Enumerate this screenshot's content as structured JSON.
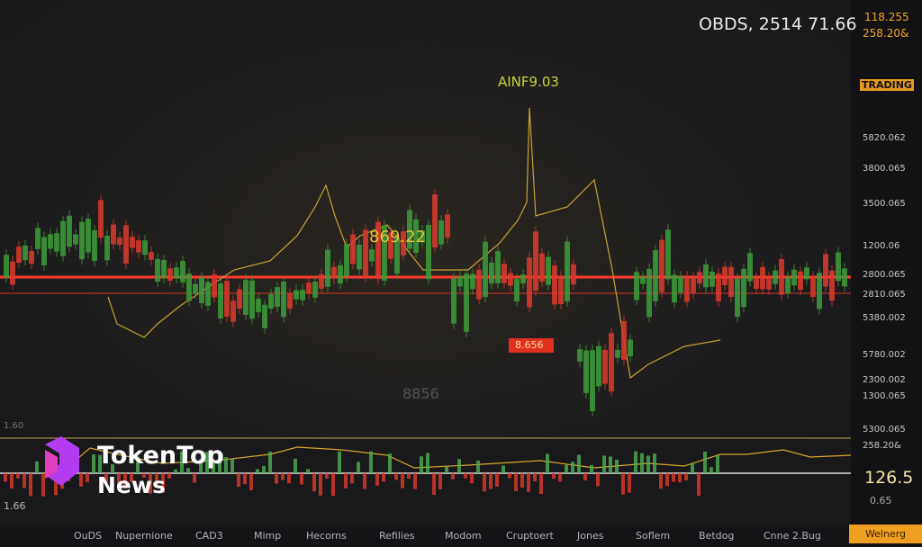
{
  "header": {
    "ticker": "OBDS, 2514 71.66",
    "quote_top": "118.255",
    "quote_sub": "258.20&",
    "badge": "TRADING"
  },
  "price_axis": [
    "5820.062",
    "3800.065",
    "3500.065",
    "1200.06",
    "2800.065",
    "2810.065",
    "5380.002",
    "5780.002",
    "2300.002",
    "1300.065",
    "5300.065",
    "258.20&"
  ],
  "annotations": {
    "peak": "AINF9.03",
    "mid": "869.22",
    "box": "8.656",
    "faded": "8856",
    "left_marker": "1.60"
  },
  "indicator": {
    "value": "126.5",
    "sub": "0.65",
    "left": "1.66"
  },
  "logo": {
    "line1": "TokenTop",
    "line2": "News"
  },
  "nav": [
    "OuDS",
    "Nupernione",
    "CAD3",
    "Mimp",
    "Hecorns",
    "Refilies",
    "Modom",
    "Cruptoert",
    "Jones",
    "Soflem",
    "Betdog",
    "Cnne 2.Bug"
  ],
  "nav_button": "Welnerg"
}
